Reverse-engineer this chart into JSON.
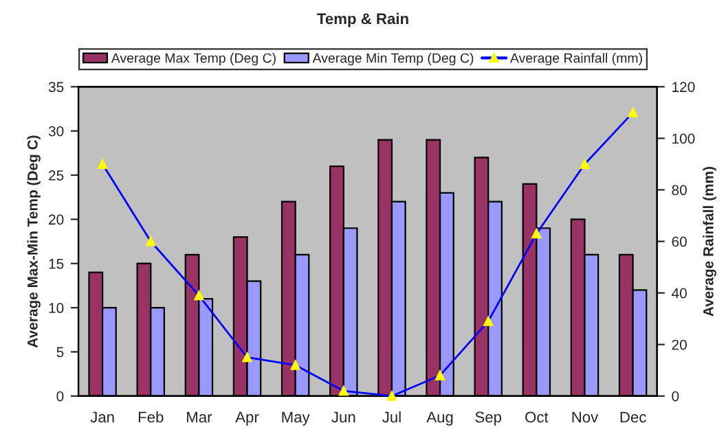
{
  "chart_data": {
    "type": "bar",
    "title": "Temp & Rain",
    "categories": [
      "Jan",
      "Feb",
      "Mar",
      "Apr",
      "May",
      "Jun",
      "Jul",
      "Aug",
      "Sep",
      "Oct",
      "Nov",
      "Dec"
    ],
    "series": [
      {
        "name": "Average Max Temp (Deg C)",
        "color": "#993366",
        "values": [
          14,
          15,
          16,
          18,
          22,
          26,
          29,
          29,
          27,
          24,
          20,
          16
        ]
      },
      {
        "name": "Average Min Temp (Deg C)",
        "color": "#9999ff",
        "values": [
          10,
          10,
          11,
          13,
          16,
          19,
          22,
          23,
          22,
          19,
          16,
          12
        ]
      },
      {
        "name": "Average Rainfall (mm)",
        "type": "line",
        "axis": "y2",
        "color": "#0000ff",
        "marker": "triangle",
        "values": [
          90,
          60,
          39,
          15,
          12,
          2,
          0,
          8,
          29,
          63,
          90,
          110
        ]
      }
    ],
    "ylabel": "Average Max-Min Temp (Deg C)",
    "y2label": "Average Rainfall (mm)",
    "ylim": [
      0,
      35
    ],
    "yticks": [
      0,
      5,
      10,
      15,
      20,
      25,
      30,
      35
    ],
    "y2lim": [
      0,
      120
    ],
    "y2ticks": [
      0,
      20,
      40,
      60,
      80,
      100,
      120
    ],
    "grid": false,
    "legend": "top"
  }
}
